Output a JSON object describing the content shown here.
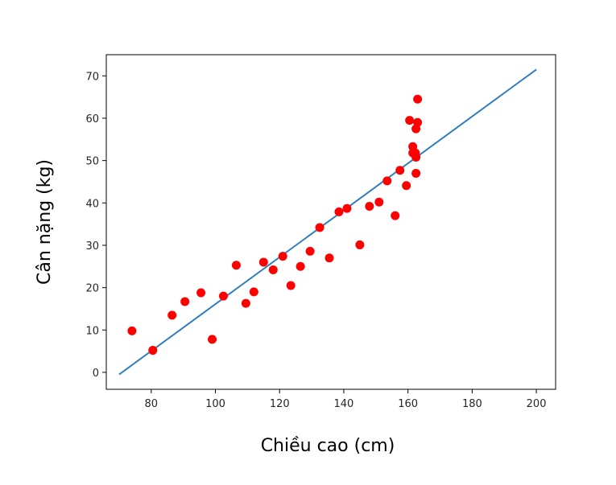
{
  "chart_data": {
    "type": "scatter",
    "title": "",
    "xlabel": "Chiều cao (cm)",
    "ylabel": "Cân nặng (kg)",
    "xlim": [
      66,
      206
    ],
    "ylim": [
      -4,
      75
    ],
    "xticks": [
      80,
      100,
      120,
      140,
      160,
      180,
      200
    ],
    "yticks": [
      0,
      10,
      20,
      30,
      40,
      50,
      60,
      70
    ],
    "grid": false,
    "marker_color": "#ff0000",
    "line_color": "#2f7fbf",
    "fit_line": {
      "x": [
        70,
        200
      ],
      "y": [
        -0.5,
        71.5
      ]
    },
    "points": [
      {
        "x": 74,
        "y": 9.8
      },
      {
        "x": 80.5,
        "y": 5.2
      },
      {
        "x": 86.5,
        "y": 13.5
      },
      {
        "x": 90.5,
        "y": 16.7
      },
      {
        "x": 95.5,
        "y": 18.8
      },
      {
        "x": 99,
        "y": 7.8
      },
      {
        "x": 102.5,
        "y": 18
      },
      {
        "x": 106.5,
        "y": 25.3
      },
      {
        "x": 109.5,
        "y": 16.3
      },
      {
        "x": 112,
        "y": 19
      },
      {
        "x": 115,
        "y": 26
      },
      {
        "x": 118,
        "y": 24.2
      },
      {
        "x": 121,
        "y": 27.4
      },
      {
        "x": 123.5,
        "y": 20.5
      },
      {
        "x": 126.5,
        "y": 25
      },
      {
        "x": 129.5,
        "y": 28.6
      },
      {
        "x": 132.5,
        "y": 34.2
      },
      {
        "x": 135.5,
        "y": 27
      },
      {
        "x": 138.5,
        "y": 37.9
      },
      {
        "x": 141,
        "y": 38.7
      },
      {
        "x": 145,
        "y": 30.1
      },
      {
        "x": 148,
        "y": 39.2
      },
      {
        "x": 151,
        "y": 40.2
      },
      {
        "x": 153.5,
        "y": 45.2
      },
      {
        "x": 156,
        "y": 37
      },
      {
        "x": 157.5,
        "y": 47.7
      },
      {
        "x": 159.5,
        "y": 44.1
      },
      {
        "x": 160.5,
        "y": 59.5
      },
      {
        "x": 161.5,
        "y": 53.3
      },
      {
        "x": 161.5,
        "y": 51.8
      },
      {
        "x": 162.3,
        "y": 51.8
      },
      {
        "x": 162.5,
        "y": 50.8
      },
      {
        "x": 162.5,
        "y": 47
      },
      {
        "x": 162.5,
        "y": 57.5
      },
      {
        "x": 163,
        "y": 59
      },
      {
        "x": 163,
        "y": 64.5
      }
    ]
  }
}
